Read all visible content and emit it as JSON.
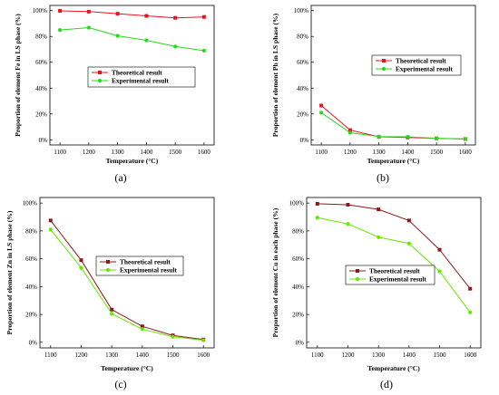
{
  "chart_data": [
    {
      "type": "line",
      "caption": "(a)",
      "xlabel": "Temperature (°C)",
      "ylabel": "Proportion of element Fe in LS phase (%)",
      "x": [
        1100,
        1200,
        1300,
        1400,
        1500,
        1600
      ],
      "x_ticks": [
        "1100",
        "1200",
        "1300",
        "1400",
        "1500",
        "1600"
      ],
      "y_ticks": [
        "0%",
        "20%",
        "40%",
        "60%",
        "80%",
        "100%"
      ],
      "ylim": [
        0,
        100
      ],
      "legend_position": "middle",
      "series": [
        {
          "name": "Theoretical result",
          "color": "#e8141c",
          "marker": "square",
          "values": [
            99.8,
            99.2,
            97.6,
            95.9,
            94.4,
            95.1
          ]
        },
        {
          "name": "Experimental result",
          "color": "#26d91f",
          "marker": "circle",
          "values": [
            85,
            86.8,
            80.5,
            77,
            72.2,
            69
          ]
        }
      ]
    },
    {
      "type": "line",
      "caption": "(b)",
      "xlabel": "Temperature (°C)",
      "ylabel": "Proportion of element Pb in LS phase (%)",
      "x": [
        1100,
        1200,
        1300,
        1400,
        1500,
        1600
      ],
      "x_ticks": [
        "1100",
        "1200",
        "1300",
        "1400",
        "1500",
        "1600"
      ],
      "y_ticks": [
        "0%",
        "20%",
        "40%",
        "60%",
        "80%",
        "100%"
      ],
      "ylim": [
        0,
        100
      ],
      "legend_position": "middle",
      "series": [
        {
          "name": "Theoretical result",
          "color": "#e8141c",
          "marker": "square",
          "values": [
            26.5,
            7.5,
            2.3,
            1.8,
            1.1,
            0.6
          ]
        },
        {
          "name": "Experimental result",
          "color": "#26d91f",
          "marker": "circle",
          "values": [
            21,
            5.5,
            2.5,
            2.3,
            1.2,
            0.6
          ]
        }
      ]
    },
    {
      "type": "line",
      "caption": "(c)",
      "xlabel": "Temperature (°C)",
      "ylabel": "Proportion of element Zn in LS phase (%)",
      "x": [
        1100,
        1200,
        1300,
        1400,
        1500,
        1600
      ],
      "x_ticks": [
        "1100",
        "1200",
        "1300",
        "1400",
        "1500",
        "1600"
      ],
      "y_ticks": [
        "0%",
        "20%",
        "40%",
        "60%",
        "80%",
        "100%"
      ],
      "ylim": [
        0,
        100
      ],
      "legend_position": "middle-right",
      "series": [
        {
          "name": "Theoretical result",
          "color": "#8b1a1a",
          "marker": "square",
          "values": [
            87.5,
            59,
            23.5,
            11.5,
            5,
            2
          ]
        },
        {
          "name": "Experimental result",
          "color": "#66e600",
          "marker": "circle",
          "values": [
            81,
            53.5,
            20.5,
            9.5,
            4,
            1.5
          ]
        }
      ]
    },
    {
      "type": "line",
      "caption": "(d)",
      "xlabel": "Temperature (°C)",
      "ylabel": "Proportion of element Cu in each phase (%)",
      "x": [
        1100,
        1200,
        1300,
        1400,
        1500,
        1600
      ],
      "x_ticks": [
        "1100",
        "1200",
        "1300",
        "1400",
        "1500",
        "1600"
      ],
      "y_ticks": [
        "0%",
        "20%",
        "40%",
        "60%",
        "80%",
        "100%"
      ],
      "ylim": [
        0,
        100
      ],
      "legend_position": "middle",
      "series": [
        {
          "name": "Theoretical result",
          "color": "#8b1a1a",
          "marker": "square",
          "values": [
            99.5,
            98.8,
            95.5,
            87.5,
            66.5,
            38.5
          ]
        },
        {
          "name": "Experimental result",
          "color": "#66e600",
          "marker": "circle",
          "values": [
            89.5,
            85,
            75.5,
            71,
            51,
            21.5
          ]
        }
      ]
    }
  ]
}
